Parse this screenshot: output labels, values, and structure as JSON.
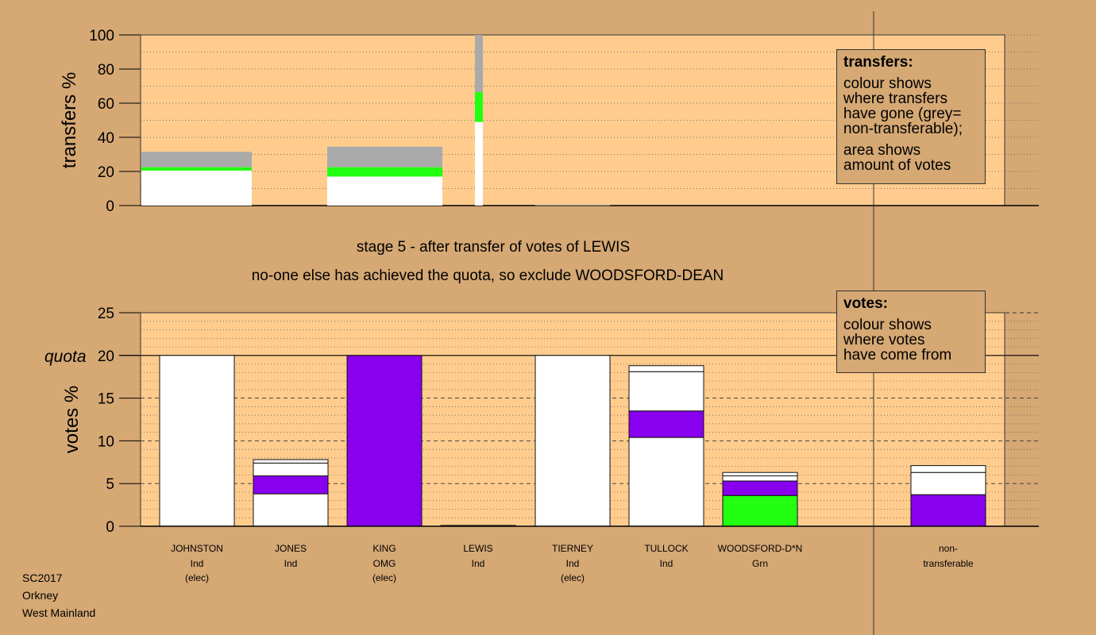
{
  "chart_data": [
    {
      "type": "bar",
      "stacked": true,
      "ylabel": "transfers %",
      "ylim": [
        0,
        100
      ],
      "yticks": [
        0,
        20,
        40,
        60,
        80,
        100
      ],
      "grid": true,
      "legend": {
        "title": "transfers:",
        "lines_a": [
          "colour shows",
          "where transfers",
          "have gone (grey=",
          "non-transferable);"
        ],
        "lines_b": [
          "area shows",
          "amount of votes"
        ],
        "placement": "top-right"
      },
      "bars": [
        {
          "segments": [
            {
              "value": 20.5,
              "color": "#ffffff"
            },
            {
              "value": 2.0,
              "color": "#22ff11"
            },
            {
              "value": 9.0,
              "color": "#aaaaaa"
            }
          ]
        },
        {
          "segments": [
            {
              "value": 17.0,
              "color": "#ffffff"
            },
            {
              "value": 5.5,
              "color": "#22ff11"
            },
            {
              "value": 12.0,
              "color": "#aaaaaa"
            }
          ]
        },
        {
          "segments": [
            {
              "value": 49.0,
              "color": "#ffffff"
            },
            {
              "value": 17.5,
              "color": "#22ff11"
            },
            {
              "value": 33.5,
              "color": "#aaaaaa"
            }
          ]
        },
        {
          "segments": [
            {
              "value": 0.3,
              "color": "#aaaaaa"
            }
          ]
        }
      ]
    },
    {
      "type": "bar",
      "stacked": true,
      "ylabel": "votes %",
      "ylim": [
        0,
        25
      ],
      "yticks": [
        0,
        5,
        10,
        15,
        20,
        25
      ],
      "quota": 20,
      "quota_label": "quota",
      "grid": true,
      "legend": {
        "title": "votes:",
        "lines": [
          "colour shows",
          "where votes",
          "have come from"
        ],
        "placement": "top-right"
      },
      "categories": [
        {
          "name": "JOHNSTON",
          "party": "Ind",
          "note": "(elec)"
        },
        {
          "name": "JONES",
          "party": "Ind",
          "note": ""
        },
        {
          "name": "KING",
          "party": "OMG",
          "note": "(elec)"
        },
        {
          "name": "LEWIS",
          "party": "Ind",
          "note": ""
        },
        {
          "name": "TIERNEY",
          "party": "Ind",
          "note": "(elec)"
        },
        {
          "name": "TULLOCK",
          "party": "Ind",
          "note": ""
        },
        {
          "name": "WOODSFORD-D*N",
          "party": "Grn",
          "note": ""
        },
        {
          "name": "non-",
          "party": "transferable",
          "note": ""
        }
      ],
      "bars": [
        [
          {
            "value": 20.0,
            "color": "#ffffff"
          }
        ],
        [
          {
            "value": 3.8,
            "color": "#ffffff"
          },
          {
            "value": 2.1,
            "color": "#8800ee"
          },
          {
            "value": 1.5,
            "color": "#ffffff"
          },
          {
            "value": 0.4,
            "color": "#ffffff"
          }
        ],
        [
          {
            "value": 20.0,
            "color": "#8800ee"
          }
        ],
        [
          {
            "value": 0.1,
            "color": "#ffffff"
          }
        ],
        [
          {
            "value": 20.0,
            "color": "#ffffff"
          }
        ],
        [
          {
            "value": 10.4,
            "color": "#ffffff"
          },
          {
            "value": 3.1,
            "color": "#8800ee"
          },
          {
            "value": 4.6,
            "color": "#ffffff"
          },
          {
            "value": 0.7,
            "color": "#ffffff"
          }
        ],
        [
          {
            "value": 3.6,
            "color": "#22ff11"
          },
          {
            "value": 1.7,
            "color": "#8800ee"
          },
          {
            "value": 0.6,
            "color": "#ffffff"
          },
          {
            "value": 0.4,
            "color": "#ffffff"
          }
        ],
        [
          {
            "value": 3.7,
            "color": "#8800ee"
          },
          {
            "value": 2.6,
            "color": "#ffffff"
          },
          {
            "value": 0.8,
            "color": "#ffffff"
          }
        ]
      ]
    }
  ],
  "stage": {
    "line1": "stage 5 - after transfer of votes of LEWIS",
    "line2": "no-one else has achieved the quota, so exclude WOODSFORD-DEAN"
  },
  "footer": [
    "SC2017",
    "Orkney",
    "West Mainland"
  ],
  "colors": {
    "background": "#d5a874",
    "plot_background": "#ffcc8e",
    "white": "#ffffff",
    "purple": "#8800ee",
    "green": "#22ff11",
    "grey": "#aaaaaa"
  }
}
